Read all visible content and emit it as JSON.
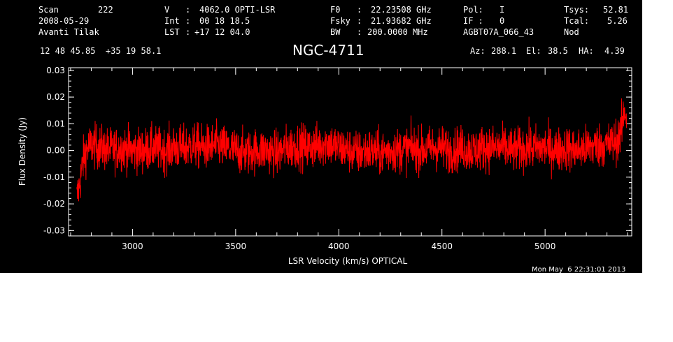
{
  "header": {
    "scan_label": "Scan",
    "scan_value": "222",
    "date": "2008-05-29",
    "observer": "Avanti Tilak",
    "v_label": "V",
    "v_value": "4062.0 OPTI-LSR",
    "int_label": "Int",
    "int_value": "00 18 18.5",
    "lst_label": "LST",
    "lst_value": "+17 12 04.0",
    "f0_label": "F0",
    "f0_value": "22.23508 GHz",
    "fsky_label": "Fsky",
    "fsky_value": "21.93682 GHz",
    "bw_label": "BW",
    "bw_value": "200.0000 MHz",
    "pol_label": "Pol:",
    "pol_value": "I",
    "if_label": "IF :",
    "if_value": "0",
    "project": "AGBT07A_066_43",
    "tsys_label": "Tsys:",
    "tsys_value": "52.81",
    "tcal_label": "Tcal:",
    "tcal_value": "5.26",
    "mode": "Nod",
    "coords": "12 48 45.85  +35 19 58.1",
    "source": "NGC-4711",
    "az_label": "Az:",
    "az_value": "288.1",
    "el_label": "El:",
    "el_value": "38.5",
    "ha_label": "HA:",
    "ha_value": "4.39"
  },
  "footer": {
    "timestamp": "Mon May  6 22:31:01 2013"
  },
  "chart_data": {
    "type": "line",
    "xlabel": "LSR Velocity (km/s) OPTICAL",
    "ylabel": "Flux Density (Jy)",
    "xlim": [
      2690,
      5420
    ],
    "ylim": [
      -0.032,
      0.031
    ],
    "xticks": [
      3000,
      3500,
      4000,
      4500,
      5000
    ],
    "yticks": [
      -0.03,
      -0.02,
      -0.01,
      0.0,
      0.01,
      0.02,
      0.03
    ],
    "ytick_labels": [
      "-0.03",
      "-0.02",
      "-0.01",
      "0.00",
      "0.01",
      "0.02",
      "0.03"
    ],
    "grid": false,
    "colors": {
      "background": "#000000",
      "axes": "#ffffff",
      "series": "#ff0000"
    },
    "series": [
      {
        "x": [
          2730,
          2745,
          2760,
          2775,
          2800,
          2850,
          2900,
          2950,
          3000,
          3050,
          3100,
          3150,
          3200,
          3250,
          3300,
          3350,
          3400,
          3450,
          3500,
          3550,
          3600,
          3650,
          3700,
          3750,
          3800,
          3850,
          3900,
          3950,
          4000,
          4050,
          4100,
          4150,
          4200,
          4250,
          4300,
          4350,
          4400,
          4450,
          4500,
          4550,
          4600,
          4650,
          4700,
          4750,
          4800,
          4850,
          4900,
          4950,
          5000,
          5050,
          5100,
          5150,
          5200,
          5250,
          5300,
          5330,
          5350,
          5365,
          5375,
          5385,
          5395
        ],
        "values": [
          -0.018,
          -0.012,
          -0.004,
          0.0,
          0.002,
          0.001,
          0.0,
          0.001,
          0.0,
          0.0,
          0.001,
          0.0,
          0.001,
          0.001,
          0.002,
          0.001,
          0.002,
          0.001,
          0.0,
          -0.001,
          0.0,
          0.0,
          -0.001,
          0.001,
          0.002,
          0.001,
          0.002,
          0.003,
          0.001,
          0.0,
          -0.001,
          0.0,
          -0.001,
          0.0,
          0.0,
          0.001,
          0.0,
          0.001,
          0.001,
          0.0,
          0.001,
          0.0,
          0.001,
          0.001,
          0.001,
          0.0,
          0.001,
          0.001,
          0.001,
          0.0,
          0.001,
          0.0,
          0.001,
          0.002,
          0.002,
          0.003,
          0.004,
          0.006,
          0.01,
          0.016,
          0.012
        ]
      }
    ]
  }
}
